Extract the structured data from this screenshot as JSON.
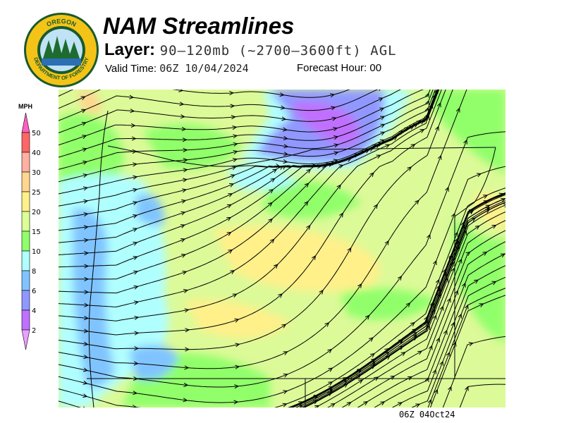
{
  "header": {
    "title": "NAM Streamlines",
    "layer_label": "Layer:",
    "layer_value": "90–120mb (~2700–3600ft) AGL",
    "valid_label": "Valid Time:",
    "valid_value": "06Z 10/04/2024",
    "forecast_label": "Forecast Hour:",
    "forecast_value": "00"
  },
  "logo": {
    "text_top": "OREGON",
    "text_bottom": "DEPARTMENT OF FORESTRY"
  },
  "legend": {
    "unit": "MPH",
    "labels": [
      "50",
      "40",
      "30",
      "25",
      "20",
      "15",
      "10",
      "8",
      "6",
      "4",
      "2"
    ],
    "colors": [
      "#ff6666",
      "#ffb0a0",
      "#ffd690",
      "#fff08a",
      "#dcff96",
      "#90ff6a",
      "#b0ffff",
      "#80c4ff",
      "#9098ff",
      "#c070ff"
    ],
    "top_arrow_color": "#ff60c0",
    "bottom_arrow_color": "#e8a0ff"
  },
  "footer": {
    "stamp": "06Z 04Oct24"
  }
}
